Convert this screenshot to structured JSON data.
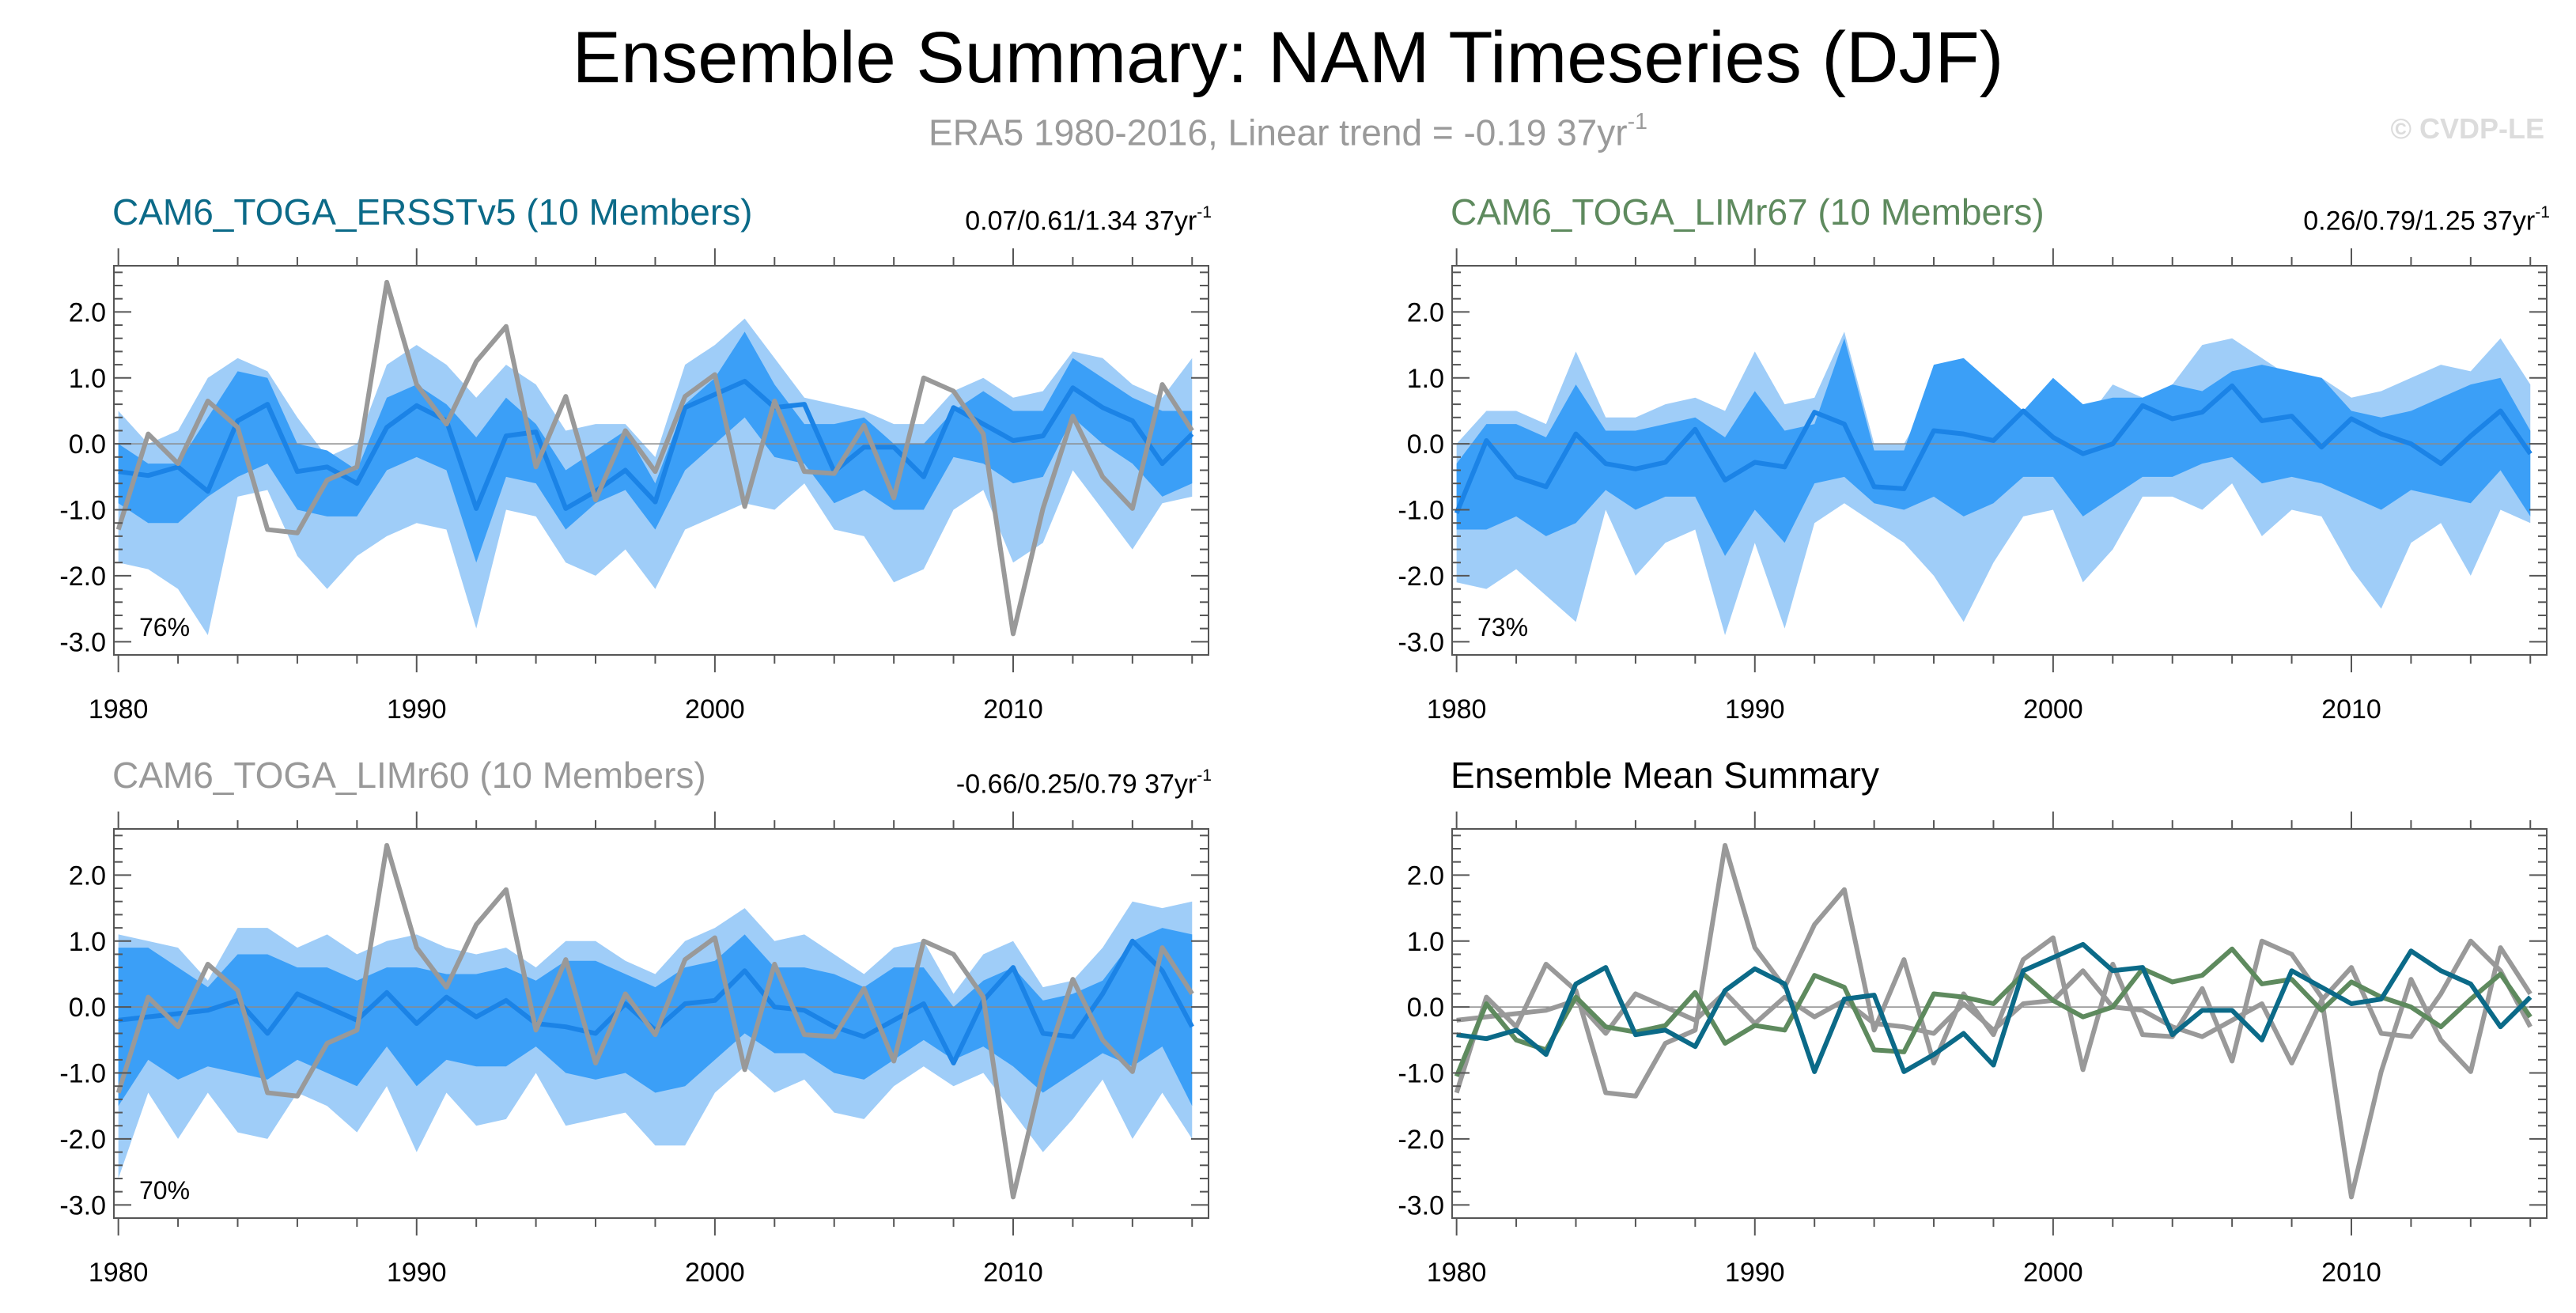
{
  "header": {
    "title": "Ensemble Summary: NAM Timeseries (DJF)",
    "subtitle_main": "ERA5 1980-2016, Linear trend = -0.19 37yr",
    "subtitle_sup": "-1",
    "watermark": "© CVDP-LE"
  },
  "colors": {
    "band_outer": "#9fcdf8",
    "band_inner": "#3b9ff7",
    "ens_mean": "#1b83e6",
    "obs": "#999999",
    "toga_ersst": "#0b6a88",
    "toga_limr67": "#5e8a5e",
    "toga_limr60": "#999999",
    "axis": "#555555"
  },
  "chart_data": [
    {
      "type": "area",
      "name": "CAM6_TOGA_ERSSTv5 (10 Members)",
      "trend_text": "0.07/0.61/1.34 37yr",
      "trend_sup": "-1",
      "pct_label": "76%",
      "title_color": "#0b6a88",
      "x": [
        1980,
        1981,
        1982,
        1983,
        1984,
        1985,
        1986,
        1987,
        1988,
        1989,
        1990,
        1991,
        1992,
        1993,
        1994,
        1995,
        1996,
        1997,
        1998,
        1999,
        2000,
        2001,
        2002,
        2003,
        2004,
        2005,
        2006,
        2007,
        2008,
        2009,
        2010,
        2011,
        2012,
        2013,
        2014,
        2015,
        2016
      ],
      "xticks": [
        1980,
        1990,
        2000,
        2010
      ],
      "yticks": [
        "2.0",
        "1.0",
        "0.0",
        "-1.0",
        "-2.0",
        "-3.0"
      ],
      "ylim": [
        -3.2,
        2.7
      ],
      "outer_hi": [
        0.5,
        0.0,
        0.2,
        1.0,
        1.3,
        1.1,
        0.4,
        -0.2,
        0.0,
        1.2,
        1.5,
        1.2,
        0.7,
        1.2,
        0.9,
        0.2,
        0.3,
        0.3,
        -0.2,
        1.2,
        1.5,
        1.9,
        1.3,
        0.7,
        0.6,
        0.5,
        0.3,
        0.3,
        0.8,
        1.0,
        0.7,
        0.8,
        1.4,
        1.3,
        0.9,
        0.7,
        1.3
      ],
      "outer_lo": [
        -1.8,
        -1.9,
        -2.2,
        -2.9,
        -0.8,
        -0.7,
        -1.7,
        -2.2,
        -1.7,
        -1.4,
        -1.2,
        -1.3,
        -2.8,
        -1.0,
        -1.1,
        -1.8,
        -2.0,
        -1.6,
        -2.2,
        -1.3,
        -1.1,
        -0.9,
        -1.0,
        -0.6,
        -1.3,
        -1.4,
        -2.1,
        -1.9,
        -1.0,
        -0.7,
        -1.8,
        -1.5,
        -0.4,
        -1.0,
        -1.6,
        -0.9,
        -0.8
      ],
      "inner_hi": [
        0.0,
        -0.3,
        -0.3,
        0.4,
        1.1,
        1.0,
        0.0,
        -0.1,
        -0.4,
        0.7,
        0.9,
        0.6,
        0.1,
        0.7,
        0.3,
        -0.4,
        -0.1,
        0.2,
        -0.6,
        0.6,
        1.0,
        1.7,
        0.9,
        0.3,
        0.3,
        0.4,
        0.0,
        0.0,
        0.5,
        0.8,
        0.5,
        0.5,
        1.3,
        1.0,
        0.7,
        0.5,
        0.5
      ],
      "inner_lo": [
        -0.9,
        -1.2,
        -1.2,
        -0.8,
        -0.5,
        -0.3,
        -1.0,
        -1.1,
        -1.1,
        -0.4,
        -0.2,
        -0.4,
        -1.8,
        -0.5,
        -0.6,
        -1.3,
        -0.9,
        -0.7,
        -1.3,
        -0.4,
        0.0,
        0.4,
        -0.2,
        -0.3,
        -0.9,
        -0.7,
        -1.0,
        -1.0,
        -0.2,
        -0.3,
        -0.6,
        -0.5,
        0.4,
        0.0,
        -0.3,
        -0.8,
        -0.6
      ],
      "mean": [
        -0.42,
        -0.48,
        -0.35,
        -0.72,
        0.35,
        0.6,
        -0.42,
        -0.35,
        -0.6,
        0.25,
        0.58,
        0.35,
        -0.98,
        0.12,
        0.18,
        -0.98,
        -0.72,
        -0.4,
        -0.88,
        0.55,
        0.75,
        0.95,
        0.55,
        0.6,
        -0.42,
        -0.05,
        -0.05,
        -0.5,
        0.55,
        0.3,
        0.05,
        0.12,
        0.85,
        0.55,
        0.35,
        -0.3,
        0.15
      ],
      "obs": [
        -1.3,
        0.15,
        -0.3,
        0.65,
        0.25,
        -1.3,
        -1.35,
        -0.55,
        -0.35,
        2.45,
        0.9,
        0.3,
        1.25,
        1.78,
        -0.35,
        0.72,
        -0.85,
        0.2,
        -0.42,
        0.72,
        1.05,
        -0.95,
        0.65,
        -0.42,
        -0.45,
        0.28,
        -0.82,
        1.0,
        0.8,
        0.15,
        -2.88,
        -0.98,
        0.42,
        -0.5,
        -0.98,
        0.9,
        0.2
      ]
    },
    {
      "type": "area",
      "name": "CAM6_TOGA_LIMr67 (10 Members)",
      "trend_text": "0.26/0.79/1.25 37yr",
      "trend_sup": "-1",
      "pct_label": "73%",
      "title_color": "#5e8a5e",
      "x": [
        1980,
        1981,
        1982,
        1983,
        1984,
        1985,
        1986,
        1987,
        1988,
        1989,
        1990,
        1991,
        1992,
        1993,
        1994,
        1995,
        1996,
        1997,
        1998,
        1999,
        2000,
        2001,
        2002,
        2003,
        2004,
        2005,
        2006,
        2007,
        2008,
        2009,
        2010,
        2011,
        2012,
        2013,
        2014,
        2015,
        2016
      ],
      "xticks": [
        1980,
        1990,
        2000,
        2010
      ],
      "yticks": [
        "2.0",
        "1.0",
        "0.0",
        "-1.0",
        "-2.0",
        "-3.0"
      ],
      "ylim": [
        -3.2,
        2.7
      ],
      "outer_hi": [
        0.0,
        0.5,
        0.5,
        0.3,
        1.4,
        0.4,
        0.4,
        0.6,
        0.7,
        0.5,
        1.4,
        0.6,
        0.7,
        1.7,
        0.0,
        0.0,
        0.8,
        0.5,
        0.4,
        0.4,
        0.8,
        0.3,
        0.9,
        0.7,
        0.9,
        1.5,
        1.6,
        1.3,
        1.0,
        1.0,
        0.7,
        0.8,
        1.0,
        1.2,
        1.1,
        1.6,
        0.9
      ],
      "outer_lo": [
        -2.1,
        -2.2,
        -1.9,
        -2.3,
        -2.7,
        -1.0,
        -2.0,
        -1.5,
        -1.3,
        -2.9,
        -1.5,
        -2.8,
        -1.2,
        -0.9,
        -1.2,
        -1.5,
        -2.0,
        -2.7,
        -1.8,
        -1.1,
        -1.0,
        -2.1,
        -1.6,
        -0.8,
        -0.8,
        -1.0,
        -0.6,
        -1.4,
        -1.0,
        -1.1,
        -1.9,
        -2.5,
        -1.5,
        -1.2,
        -2.0,
        -1.0,
        -1.2
      ],
      "inner_hi": [
        -0.3,
        0.3,
        0.3,
        0.1,
        0.9,
        0.2,
        0.2,
        0.3,
        0.4,
        0.1,
        0.8,
        0.2,
        0.3,
        1.6,
        -0.1,
        -0.1,
        1.2,
        1.3,
        0.9,
        0.5,
        1.0,
        0.6,
        0.7,
        0.7,
        0.9,
        0.8,
        1.1,
        1.2,
        1.1,
        1.0,
        0.5,
        0.4,
        0.5,
        0.7,
        0.9,
        1.0,
        0.2
      ],
      "inner_lo": [
        -1.3,
        -1.3,
        -1.1,
        -1.4,
        -1.2,
        -0.7,
        -1.0,
        -0.8,
        -0.8,
        -1.7,
        -1.0,
        -1.5,
        -0.6,
        -0.5,
        -0.9,
        -1.0,
        -0.8,
        -1.1,
        -0.9,
        -0.5,
        -0.5,
        -1.1,
        -0.8,
        -0.5,
        -0.5,
        -0.3,
        -0.2,
        -0.6,
        -0.5,
        -0.6,
        -0.8,
        -1.0,
        -0.7,
        -0.8,
        -0.9,
        -0.4,
        -1.1
      ],
      "mean": [
        -1.05,
        0.05,
        -0.5,
        -0.65,
        0.15,
        -0.3,
        -0.38,
        -0.28,
        0.22,
        -0.55,
        -0.28,
        -0.35,
        0.48,
        0.3,
        -0.65,
        -0.68,
        0.2,
        0.15,
        0.05,
        0.5,
        0.1,
        -0.15,
        0.0,
        0.58,
        0.38,
        0.48,
        0.88,
        0.35,
        0.42,
        -0.05,
        0.38,
        0.15,
        0.0,
        -0.3,
        0.12,
        0.5,
        -0.15
      ]
    },
    {
      "type": "area",
      "name": "CAM6_TOGA_LIMr60 (10 Members)",
      "trend_text": "-0.66/0.25/0.79 37yr",
      "trend_sup": "-1",
      "pct_label": "70%",
      "title_color": "#999999",
      "x": [
        1980,
        1981,
        1982,
        1983,
        1984,
        1985,
        1986,
        1987,
        1988,
        1989,
        1990,
        1991,
        1992,
        1993,
        1994,
        1995,
        1996,
        1997,
        1998,
        1999,
        2000,
        2001,
        2002,
        2003,
        2004,
        2005,
        2006,
        2007,
        2008,
        2009,
        2010,
        2011,
        2012,
        2013,
        2014,
        2015,
        2016
      ],
      "xticks": [
        1980,
        1990,
        2000,
        2010
      ],
      "yticks": [
        "2.0",
        "1.0",
        "0.0",
        "-1.0",
        "-2.0",
        "-3.0"
      ],
      "ylim": [
        -3.2,
        2.7
      ],
      "outer_hi": [
        1.1,
        1.0,
        0.9,
        0.4,
        1.2,
        1.2,
        0.9,
        1.1,
        0.8,
        1.0,
        1.1,
        0.9,
        0.8,
        0.9,
        0.6,
        1.0,
        1.0,
        0.7,
        0.5,
        1.0,
        1.2,
        1.5,
        1.0,
        1.1,
        0.8,
        0.5,
        0.9,
        1.0,
        0.2,
        0.8,
        1.0,
        0.3,
        0.4,
        0.9,
        1.6,
        1.5,
        1.6
      ],
      "outer_lo": [
        -2.6,
        -1.3,
        -2.0,
        -1.3,
        -1.9,
        -2.0,
        -1.3,
        -1.5,
        -1.9,
        -1.2,
        -2.2,
        -1.3,
        -1.8,
        -1.7,
        -1.0,
        -1.8,
        -1.7,
        -1.6,
        -2.1,
        -2.1,
        -1.3,
        -0.9,
        -1.3,
        -1.1,
        -1.6,
        -1.7,
        -1.2,
        -0.9,
        -1.2,
        -1.0,
        -1.6,
        -2.2,
        -1.7,
        -1.1,
        -2.0,
        -1.3,
        -2.0
      ],
      "inner_hi": [
        0.9,
        0.9,
        0.6,
        0.3,
        0.8,
        0.8,
        0.6,
        0.6,
        0.4,
        0.6,
        0.6,
        0.5,
        0.5,
        0.6,
        0.4,
        0.7,
        0.7,
        0.5,
        0.3,
        0.6,
        0.7,
        1.1,
        0.6,
        0.6,
        0.5,
        0.3,
        0.6,
        0.6,
        0.0,
        0.4,
        0.6,
        0.1,
        0.2,
        0.4,
        1.0,
        1.2,
        1.1
      ],
      "inner_lo": [
        -1.5,
        -0.8,
        -1.1,
        -0.9,
        -1.0,
        -1.1,
        -0.8,
        -1.0,
        -1.2,
        -0.6,
        -1.2,
        -0.8,
        -0.9,
        -0.9,
        -0.6,
        -1.0,
        -1.1,
        -1.0,
        -1.3,
        -1.2,
        -0.8,
        -0.4,
        -0.7,
        -0.7,
        -1.0,
        -1.1,
        -0.8,
        -0.5,
        -0.8,
        -0.6,
        -0.9,
        -1.3,
        -1.0,
        -0.7,
        -0.9,
        -0.6,
        -1.5
      ],
      "mean": [
        -0.2,
        -0.15,
        -0.1,
        -0.05,
        0.1,
        -0.4,
        0.2,
        0.0,
        -0.2,
        0.22,
        -0.25,
        0.15,
        -0.15,
        0.1,
        -0.25,
        -0.3,
        -0.4,
        0.05,
        -0.35,
        0.05,
        0.1,
        0.55,
        0.0,
        -0.05,
        -0.3,
        -0.45,
        -0.2,
        0.05,
        -0.85,
        0.1,
        0.6,
        -0.4,
        -0.45,
        0.2,
        1.0,
        0.55,
        -0.3
      ],
      "obs": [
        -1.3,
        0.15,
        -0.3,
        0.65,
        0.25,
        -1.3,
        -1.35,
        -0.55,
        -0.35,
        2.45,
        0.9,
        0.3,
        1.25,
        1.78,
        -0.35,
        0.72,
        -0.85,
        0.2,
        -0.42,
        0.72,
        1.05,
        -0.95,
        0.65,
        -0.42,
        -0.45,
        0.28,
        -0.82,
        1.0,
        0.8,
        0.15,
        -2.88,
        -0.98,
        0.42,
        -0.5,
        -0.98,
        0.9,
        0.2
      ]
    },
    {
      "type": "line",
      "name": "Ensemble Mean Summary",
      "title_color": "#000000",
      "x": [
        1980,
        1981,
        1982,
        1983,
        1984,
        1985,
        1986,
        1987,
        1988,
        1989,
        1990,
        1991,
        1992,
        1993,
        1994,
        1995,
        1996,
        1997,
        1998,
        1999,
        2000,
        2001,
        2002,
        2003,
        2004,
        2005,
        2006,
        2007,
        2008,
        2009,
        2010,
        2011,
        2012,
        2013,
        2014,
        2015,
        2016
      ],
      "xticks": [
        1980,
        1990,
        2000,
        2010
      ],
      "yticks": [
        "2.0",
        "1.0",
        "0.0",
        "-1.0",
        "-2.0",
        "-3.0"
      ],
      "ylim": [
        -3.2,
        2.7
      ],
      "series": [
        {
          "name": "ERA5",
          "color": "#999999",
          "values": [
            -1.3,
            0.15,
            -0.3,
            0.65,
            0.25,
            -1.3,
            -1.35,
            -0.55,
            -0.35,
            2.45,
            0.9,
            0.3,
            1.25,
            1.78,
            -0.35,
            0.72,
            -0.85,
            0.2,
            -0.42,
            0.72,
            1.05,
            -0.95,
            0.65,
            -0.42,
            -0.45,
            0.28,
            -0.82,
            1.0,
            0.8,
            0.15,
            -2.88,
            -0.98,
            0.42,
            -0.5,
            -0.98,
            0.9,
            0.2
          ]
        },
        {
          "name": "CAM6_TOGA_LIMr60",
          "color": "#999999",
          "values": [
            -0.2,
            -0.15,
            -0.1,
            -0.05,
            0.1,
            -0.4,
            0.2,
            0.0,
            -0.2,
            0.22,
            -0.25,
            0.15,
            -0.15,
            0.1,
            -0.25,
            -0.3,
            -0.4,
            0.05,
            -0.35,
            0.05,
            0.1,
            0.55,
            0.0,
            -0.05,
            -0.3,
            -0.45,
            -0.2,
            0.05,
            -0.85,
            0.1,
            0.6,
            -0.4,
            -0.45,
            0.2,
            1.0,
            0.55,
            -0.3
          ]
        },
        {
          "name": "CAM6_TOGA_LIMr67",
          "color": "#5e8a5e",
          "values": [
            -1.05,
            0.05,
            -0.5,
            -0.65,
            0.15,
            -0.3,
            -0.38,
            -0.28,
            0.22,
            -0.55,
            -0.28,
            -0.35,
            0.48,
            0.3,
            -0.65,
            -0.68,
            0.2,
            0.15,
            0.05,
            0.5,
            0.1,
            -0.15,
            0.0,
            0.58,
            0.38,
            0.48,
            0.88,
            0.35,
            0.42,
            -0.05,
            0.38,
            0.15,
            0.0,
            -0.3,
            0.12,
            0.5,
            -0.15
          ]
        },
        {
          "name": "CAM6_TOGA_ERSSTv5",
          "color": "#0b6a88",
          "values": [
            -0.42,
            -0.48,
            -0.35,
            -0.72,
            0.35,
            0.6,
            -0.42,
            -0.35,
            -0.6,
            0.25,
            0.58,
            0.35,
            -0.98,
            0.12,
            0.18,
            -0.98,
            -0.72,
            -0.4,
            -0.88,
            0.55,
            0.75,
            0.95,
            0.55,
            0.6,
            -0.42,
            -0.05,
            -0.05,
            -0.5,
            0.55,
            0.3,
            0.05,
            0.12,
            0.85,
            0.55,
            0.35,
            -0.3,
            0.15
          ]
        }
      ]
    }
  ]
}
